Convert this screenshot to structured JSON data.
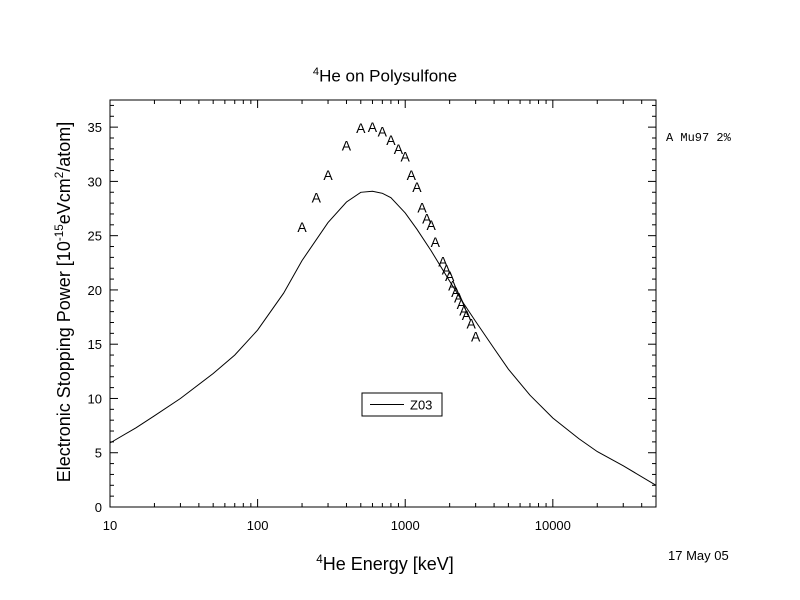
{
  "chart_data": {
    "type": "line",
    "title_sup": "4",
    "title": "He on Polysulfone",
    "xlabel_sup": "4",
    "xlabel": "He Energy [keV]",
    "ylabel_parts": [
      "Electronic Stopping Power [10",
      "-15",
      "eVcm",
      "2",
      "/atom]"
    ],
    "xscale": "log",
    "xlim": [
      10,
      50000
    ],
    "ylim": [
      0,
      37.5
    ],
    "x_ticks": [
      10,
      100,
      1000,
      10000
    ],
    "x_tick_labels": [
      "10",
      "100",
      "1000",
      "10000"
    ],
    "y_ticks": [
      0,
      5,
      10,
      15,
      20,
      25,
      30,
      35
    ],
    "y_tick_labels": [
      "0",
      "5",
      "10",
      "15",
      "20",
      "25",
      "30",
      "35"
    ],
    "grid": false,
    "series": [
      {
        "name": "Z03",
        "style": "line",
        "x": [
          10,
          15,
          20,
          30,
          50,
          70,
          100,
          150,
          200,
          300,
          400,
          500,
          600,
          700,
          800,
          1000,
          1200,
          1500,
          2000,
          2500,
          3000,
          4000,
          5000,
          7000,
          10000,
          15000,
          20000,
          30000,
          50000
        ],
        "y": [
          5.9,
          7.3,
          8.4,
          10.0,
          12.3,
          14.0,
          16.3,
          19.7,
          22.7,
          26.2,
          28.1,
          29.0,
          29.1,
          28.9,
          28.5,
          27.1,
          25.6,
          23.6,
          20.8,
          18.7,
          17.1,
          14.6,
          12.7,
          10.3,
          8.2,
          6.3,
          5.1,
          3.8,
          2.0
        ]
      },
      {
        "name": "Mu97",
        "style": "marker",
        "marker": "A",
        "x": [
          200,
          250,
          300,
          400,
          500,
          600,
          700,
          800,
          900,
          1000,
          1100,
          1200,
          1300,
          1400,
          1500,
          1600,
          1800,
          1900,
          2000,
          2100,
          2200,
          2300,
          2400,
          2500,
          2600,
          2800,
          3000
        ],
        "y": [
          25.8,
          28.5,
          30.6,
          33.3,
          34.9,
          35.0,
          34.6,
          33.8,
          33.0,
          32.3,
          30.6,
          29.5,
          27.6,
          26.6,
          26.0,
          24.4,
          22.6,
          21.9,
          21.3,
          20.4,
          19.8,
          19.3,
          18.7,
          18.1,
          17.7,
          16.9,
          15.7
        ]
      }
    ],
    "legend_inset": {
      "label": "Z03",
      "placement": "center-bottom"
    },
    "legend_ref": "A Mu97 2%",
    "date": "17 May 05"
  }
}
